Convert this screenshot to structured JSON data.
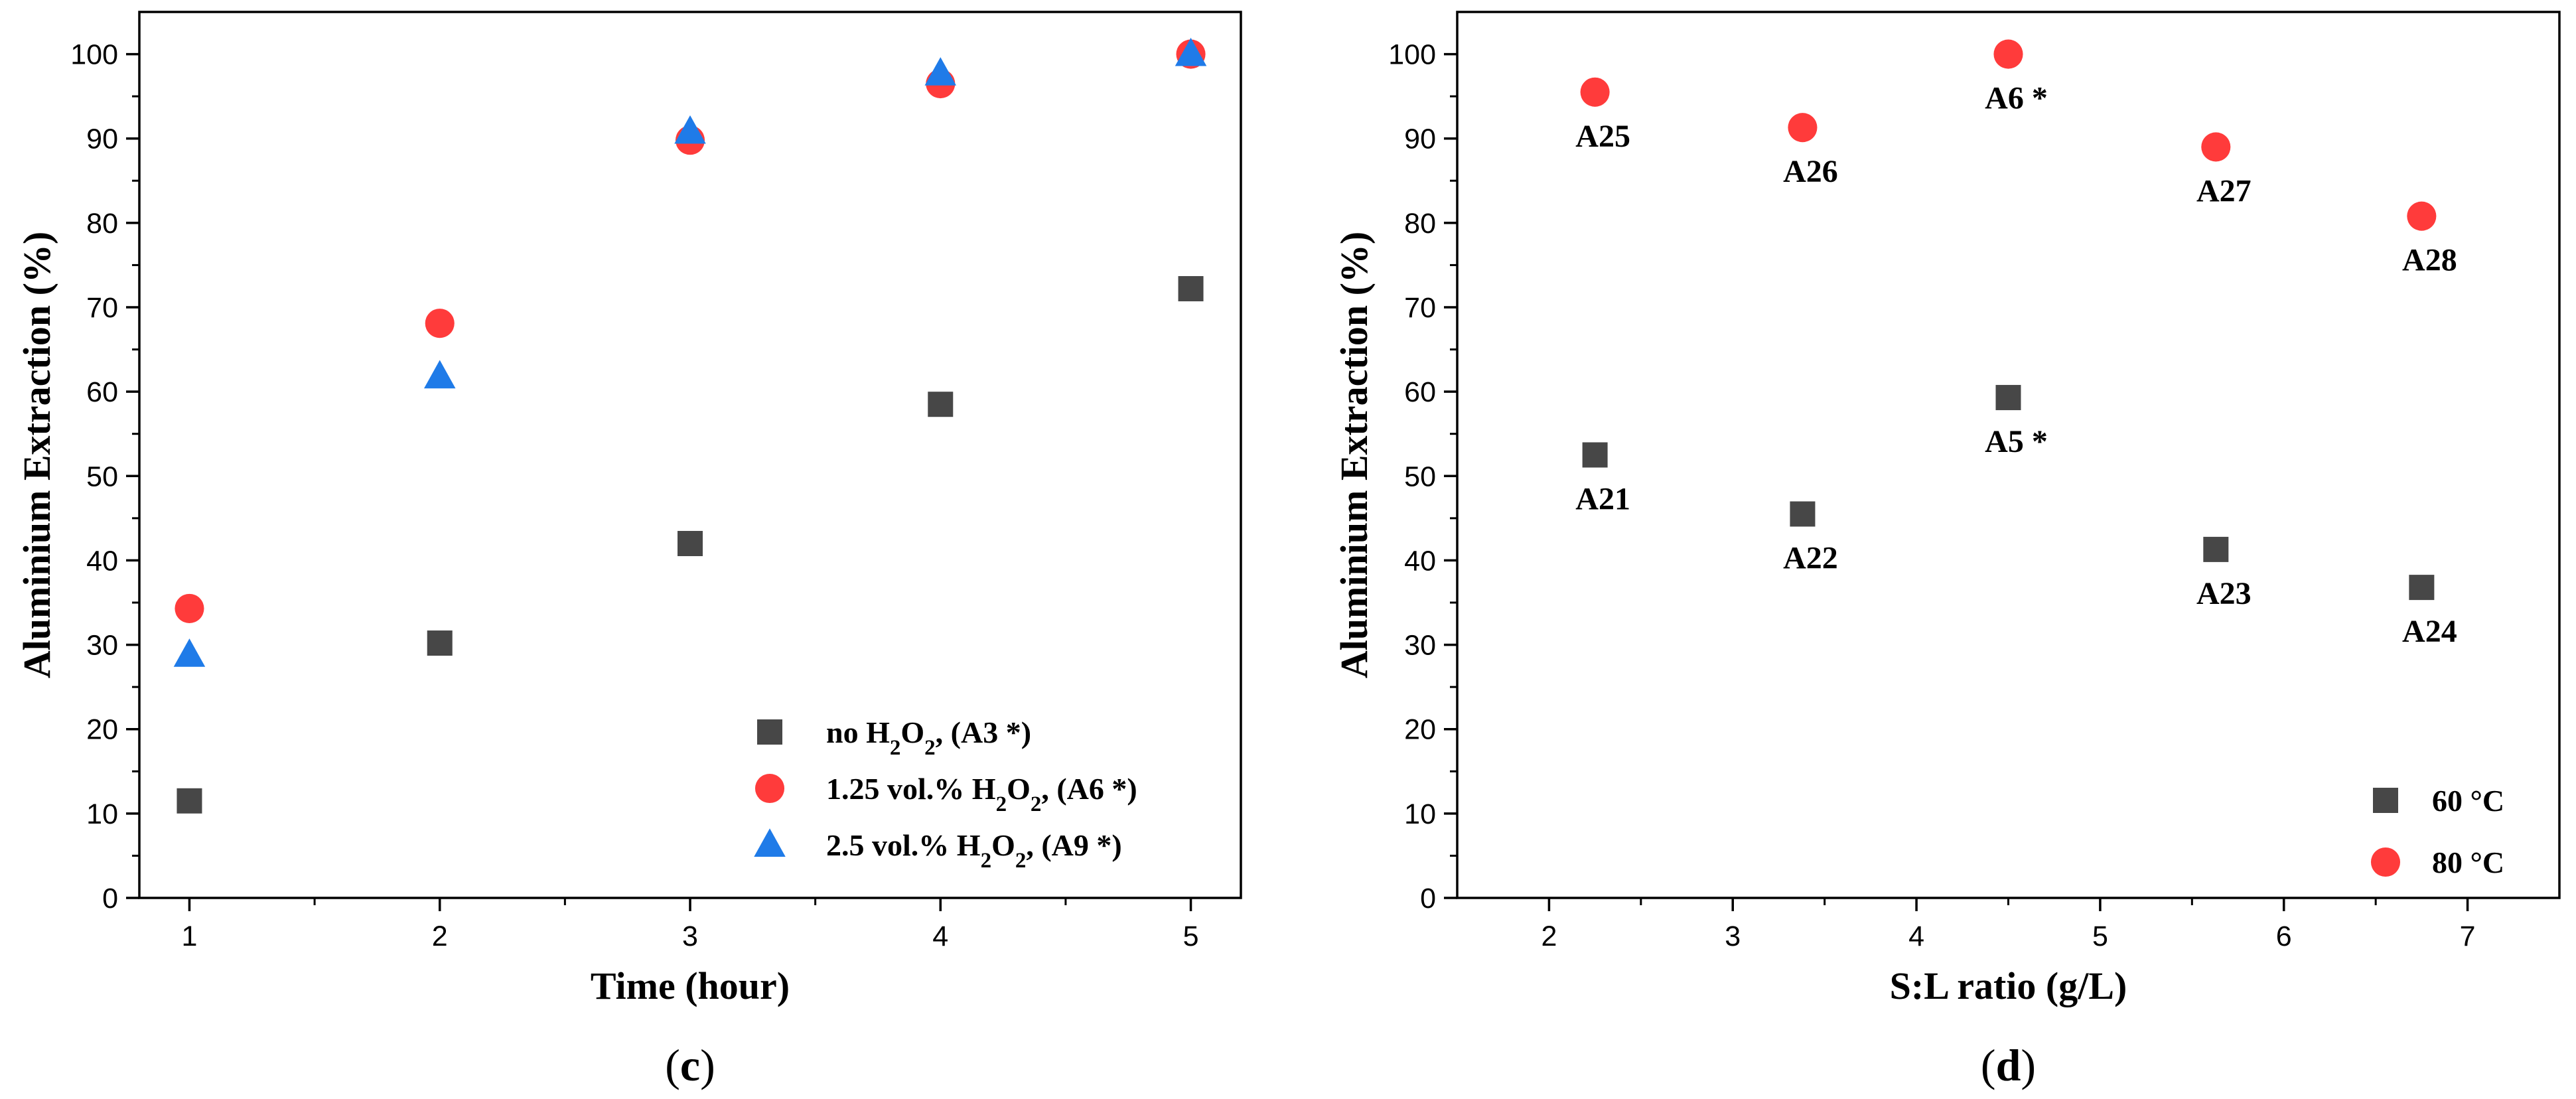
{
  "colors": {
    "square": "#474747",
    "circle": "#ff3b3b",
    "triangle": "#1f7be8"
  },
  "chart_data": [
    {
      "type": "scatter",
      "panel_label": {
        "open": "(",
        "letter": "c",
        "close": ")"
      },
      "xlabel": "Time (hour)",
      "ylabel": "Aluminium Extraction (%)",
      "xlim": [
        0.8,
        5.2
      ],
      "ylim": [
        0,
        105
      ],
      "xticks": [
        1,
        2,
        3,
        4,
        5
      ],
      "yticks": [
        0,
        10,
        20,
        30,
        40,
        50,
        60,
        70,
        80,
        90,
        100
      ],
      "legend_position": "bottom-right",
      "series": [
        {
          "marker": "square",
          "color": "#474747",
          "legend": {
            "prefix": "no H",
            "sub1": "2",
            "mid": "O",
            "sub2": "2",
            "suffix": ", (A3 *)"
          },
          "x": [
            1,
            2,
            3,
            4,
            5
          ],
          "y": [
            11.5,
            30.2,
            42.0,
            58.5,
            72.2
          ]
        },
        {
          "marker": "circle",
          "color": "#ff3b3b",
          "legend": {
            "prefix": "1.25 vol.% H",
            "sub1": "2",
            "mid": "O",
            "sub2": "2",
            "suffix": ", (A6 *)"
          },
          "x": [
            1,
            2,
            3,
            4,
            5
          ],
          "y": [
            34.3,
            68.1,
            89.8,
            96.5,
            100.0
          ]
        },
        {
          "marker": "triangle",
          "color": "#1f7be8",
          "legend": {
            "prefix": "2.5 vol.% H",
            "sub1": "2",
            "mid": "O",
            "sub2": "2",
            "suffix": ", (A9 *)"
          },
          "x": [
            1,
            2,
            3,
            4,
            5
          ],
          "y": [
            28.8,
            61.8,
            90.8,
            97.7,
            100.0
          ]
        }
      ]
    },
    {
      "type": "scatter",
      "panel_label": {
        "open": "(",
        "letter": "d",
        "close": ")"
      },
      "xlabel": "S:L ratio (g/L)",
      "ylabel": "Aluminium Extraction (%)",
      "xlim": [
        1.5,
        7.5
      ],
      "ylim": [
        0,
        105
      ],
      "xticks": [
        2,
        3,
        4,
        5,
        6,
        7
      ],
      "yticks": [
        0,
        10,
        20,
        30,
        40,
        50,
        60,
        70,
        80,
        90,
        100
      ],
      "legend_position": "bottom-right",
      "series": [
        {
          "marker": "square",
          "color": "#474747",
          "legend": {
            "prefix": "60 °C",
            "sub1": "",
            "mid": "",
            "sub2": "",
            "suffix": ""
          },
          "x": [
            2.25,
            3.38,
            4.5,
            5.63,
            6.75
          ],
          "y": [
            52.5,
            45.5,
            59.3,
            41.3,
            36.8
          ],
          "labels": [
            "A21",
            "A22",
            "A5 *",
            "A23",
            "A24"
          ]
        },
        {
          "marker": "circle",
          "color": "#ff3b3b",
          "legend": {
            "prefix": "80 °C",
            "sub1": "",
            "mid": "",
            "sub2": "",
            "suffix": ""
          },
          "x": [
            2.25,
            3.38,
            4.5,
            5.63,
            6.75
          ],
          "y": [
            95.5,
            91.3,
            100.0,
            89.0,
            80.8
          ],
          "labels": [
            "A25",
            "A26",
            "A6 *",
            "A27",
            "A28"
          ]
        }
      ]
    }
  ]
}
